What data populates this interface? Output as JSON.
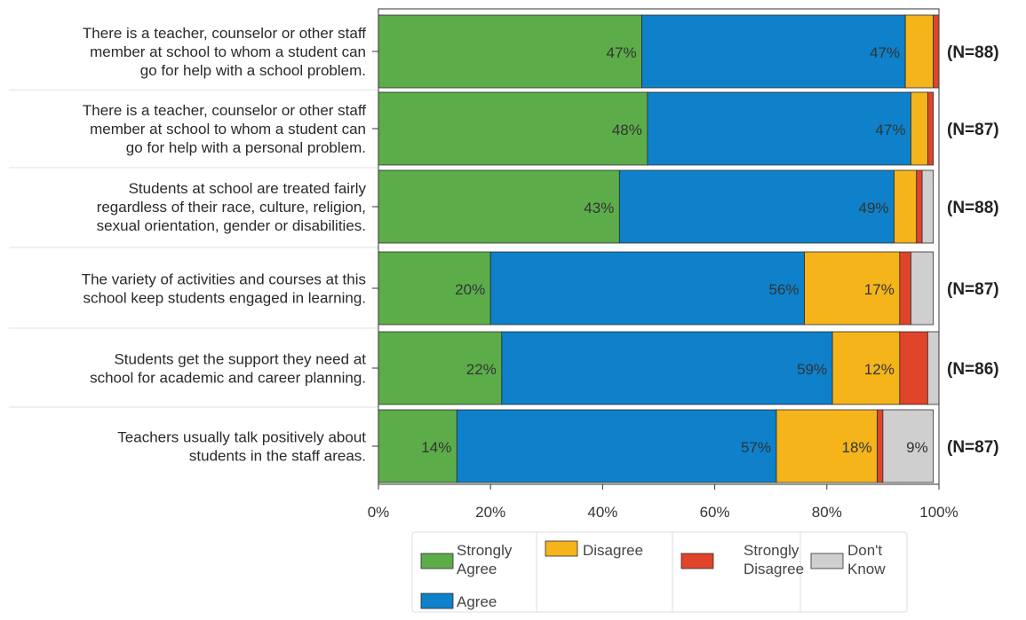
{
  "chart_data": {
    "type": "bar",
    "orientation": "horizontal",
    "stacked": true,
    "categories": [
      [
        "There is a teacher, counselor or other staff",
        "member at school to whom a student can",
        "go for help with a school problem."
      ],
      [
        "There is a teacher, counselor or other staff",
        "member at school to whom a student can",
        "go for help with a personal problem."
      ],
      [
        "Students at school are treated fairly",
        "regardless of their race, culture, religion,",
        "sexual orientation, gender or disabilities."
      ],
      [
        "The variety of activities and courses at this",
        "school keep students engaged in learning."
      ],
      [
        "Students get the support they need at",
        "school for academic and career planning."
      ],
      [
        "Teachers usually talk positively about",
        "students in the staff areas."
      ]
    ],
    "n_labels": [
      "(N=88)",
      "(N=87)",
      "(N=88)",
      "(N=87)",
      "(N=86)",
      "(N=87)"
    ],
    "series": [
      {
        "name": "Strongly Agree",
        "color": "#5cad4a",
        "values": [
          47,
          48,
          43,
          20,
          22,
          14
        ]
      },
      {
        "name": "Agree",
        "color": "#0e81ca",
        "values": [
          47,
          47,
          49,
          56,
          59,
          57
        ]
      },
      {
        "name": "Disagree",
        "color": "#f4b41a",
        "values": [
          5,
          3,
          4,
          17,
          12,
          18
        ]
      },
      {
        "name": "Strongly Disagree",
        "color": "#e0442b",
        "values": [
          1,
          1,
          1,
          2,
          5,
          1
        ]
      },
      {
        "name": "Don't Know",
        "color": "#cfcfcf",
        "values": [
          0,
          0,
          2,
          4,
          2,
          9
        ]
      }
    ],
    "data_labels": [
      [
        "47%",
        "47%",
        "",
        "",
        ""
      ],
      [
        "48%",
        "47%",
        "",
        "",
        ""
      ],
      [
        "43%",
        "49%",
        "",
        "",
        ""
      ],
      [
        "20%",
        "56%",
        "17%",
        "",
        ""
      ],
      [
        "22%",
        "59%",
        "12%",
        "",
        ""
      ],
      [
        "14%",
        "57%",
        "18%",
        "",
        "9%"
      ]
    ],
    "xlim": [
      0,
      100
    ],
    "x_ticks": [
      "0%",
      "20%",
      "40%",
      "60%",
      "80%",
      "100%"
    ],
    "legend": {
      "placement": "bottom",
      "entries": [
        {
          "label": [
            "Strongly",
            "Agree"
          ],
          "color": "#5cad4a"
        },
        {
          "label": [
            "Agree"
          ],
          "color": "#0e81ca"
        },
        {
          "label": [
            "Disagree"
          ],
          "color": "#f4b41a"
        },
        {
          "label": [
            "Strongly",
            "Disagree"
          ],
          "color": "#e0442b"
        },
        {
          "label": [
            "Don't",
            "Know"
          ],
          "color": "#cfcfcf"
        }
      ]
    }
  }
}
